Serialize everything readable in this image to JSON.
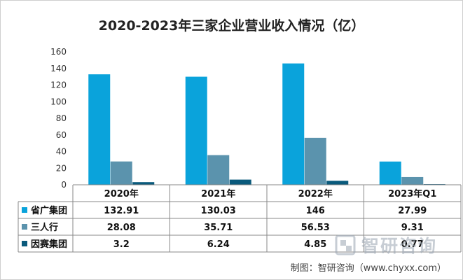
{
  "chart_data": {
    "type": "bar",
    "title": "2020-2023年三家企业营业收入情况（亿）",
    "categories": [
      "2020年",
      "2021年",
      "2022年",
      "2023年Q1"
    ],
    "ylim": [
      0,
      160
    ],
    "yticks": [
      0,
      20,
      40,
      60,
      80,
      100,
      120,
      140,
      160
    ],
    "grid": false,
    "legend": "data-table",
    "series": [
      {
        "name": "省广集团",
        "color": "#0aa3db",
        "values": [
          132.91,
          130.03,
          146,
          27.99
        ],
        "labels": [
          "132.91",
          "130.03",
          "146",
          "27.99"
        ]
      },
      {
        "name": "三人行",
        "color": "#5b93ad",
        "values": [
          28.08,
          35.71,
          56.53,
          9.31
        ],
        "labels": [
          "28.08",
          "35.71",
          "56.53",
          "9.31"
        ]
      },
      {
        "name": "因赛集团",
        "color": "#0a5a7c",
        "values": [
          3.2,
          6.24,
          4.85,
          0.77
        ],
        "labels": [
          "3.2",
          "6.24",
          "4.85",
          "0.77"
        ]
      }
    ]
  },
  "watermark": {
    "text": "智研咨询",
    "icon": "chyxx-logo-icon"
  },
  "source_note": "制图：智研咨询（www.chyxx.com）"
}
